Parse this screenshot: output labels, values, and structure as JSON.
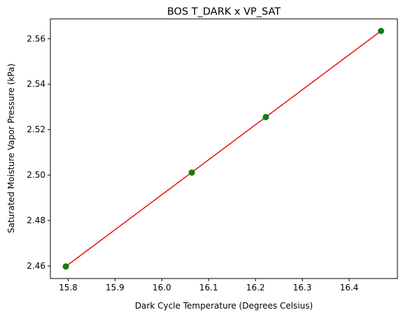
{
  "chart_data": {
    "type": "scatter",
    "title": "BOS T_DARK x VP_SAT",
    "xlabel": "Dark Cycle Temperature (Degrees Celsius)",
    "ylabel": "Saturated Moisture Vapor Pressure (kPa)",
    "xlim": [
      15.762,
      16.503
    ],
    "ylim": [
      2.4545,
      2.5687
    ],
    "xticks": [
      15.8,
      15.9,
      16.0,
      16.1,
      16.2,
      16.3,
      16.4
    ],
    "yticks": [
      2.46,
      2.48,
      2.5,
      2.52,
      2.54,
      2.56
    ],
    "xtick_labels": [
      "15.8",
      "15.9",
      "16.0",
      "16.1",
      "16.2",
      "16.3",
      "16.4"
    ],
    "ytick_labels": [
      "2.46",
      "2.48",
      "2.50",
      "2.52",
      "2.54",
      "2.56"
    ],
    "grid": false,
    "series": [
      {
        "kind": "scatter",
        "color": "#117d11",
        "x": [
          15.795,
          16.064,
          16.222,
          16.468
        ],
        "y": [
          2.4598,
          2.5011,
          2.5255,
          2.5634
        ]
      },
      {
        "kind": "line",
        "color": "#e8110f",
        "x": [
          15.795,
          16.468
        ],
        "y": [
          2.4598,
          2.5634
        ]
      }
    ]
  }
}
